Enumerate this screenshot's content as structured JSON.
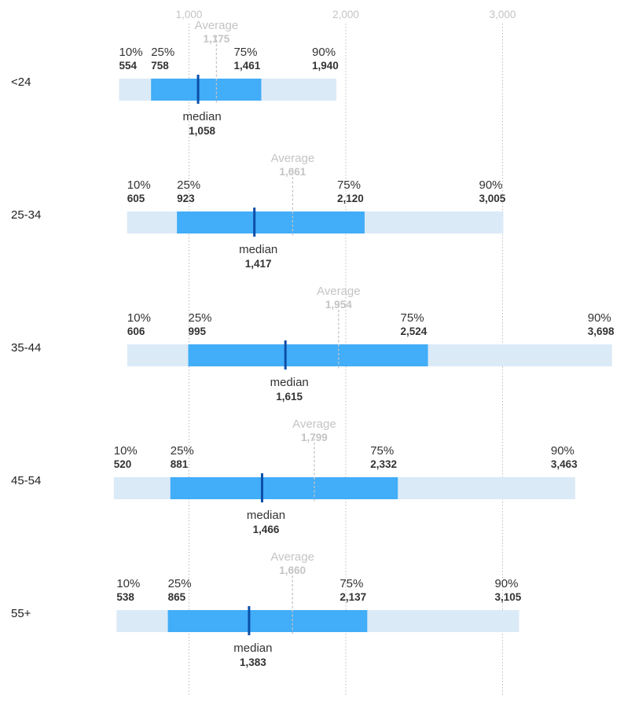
{
  "chart_data": {
    "type": "box",
    "title": "",
    "xlabel": "",
    "ylabel": "",
    "xlim": [
      550,
      3700
    ],
    "x_ticks": [
      {
        "value": 1000,
        "label": "1,000"
      },
      {
        "value": 2000,
        "label": "2,000"
      },
      {
        "value": 3000,
        "label": "3,000"
      }
    ],
    "grid": true,
    "labels": {
      "p10": "10%",
      "p25": "25%",
      "p75": "75%",
      "p90": "90%",
      "median": "median",
      "average": "Average"
    },
    "categories": [
      {
        "name": "<24",
        "p10": 554,
        "p10_label": "554",
        "p25": 758,
        "p25_label": "758",
        "median": 1058,
        "median_label": "1,058",
        "average": 1175,
        "average_label": "1,175",
        "p75": 1461,
        "p75_label": "1,461",
        "p90": 1940,
        "p90_label": "1,940"
      },
      {
        "name": "25-34",
        "p10": 605,
        "p10_label": "605",
        "p25": 923,
        "p25_label": "923",
        "median": 1417,
        "median_label": "1,417",
        "average": 1661,
        "average_label": "1,661",
        "p75": 2120,
        "p75_label": "2,120",
        "p90": 3005,
        "p90_label": "3,005"
      },
      {
        "name": "35-44",
        "p10": 606,
        "p10_label": "606",
        "p25": 995,
        "p25_label": "995",
        "median": 1615,
        "median_label": "1,615",
        "average": 1954,
        "average_label": "1,954",
        "p75": 2524,
        "p75_label": "2,524",
        "p90": 3698,
        "p90_label": "3,698"
      },
      {
        "name": "45-54",
        "p10": 520,
        "p10_label": "520",
        "p25": 881,
        "p25_label": "881",
        "median": 1466,
        "median_label": "1,466",
        "average": 1799,
        "average_label": "1,799",
        "p75": 2332,
        "p75_label": "2,332",
        "p90": 3463,
        "p90_label": "3,463"
      },
      {
        "name": "55+",
        "p10": 538,
        "p10_label": "538",
        "p25": 865,
        "p25_label": "865",
        "median": 1383,
        "median_label": "1,383",
        "average": 1660,
        "average_label": "1,660",
        "p75": 2137,
        "p75_label": "2,137",
        "p90": 3105,
        "p90_label": "3,105"
      }
    ],
    "colors": {
      "outer_band": "#dbeaf7",
      "inner_band": "#42adf8",
      "median_mark": "#0b4fa8",
      "average_line": "#c4c4c4",
      "gridline": "#bbbbbb",
      "text": "#333333",
      "muted_text": "#c4c4c4"
    }
  }
}
